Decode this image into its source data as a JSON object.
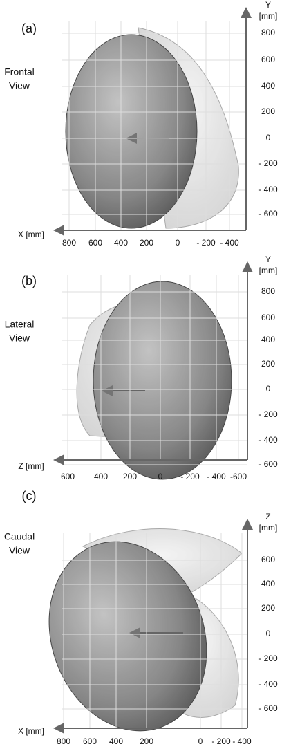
{
  "panels": [
    {
      "label": "(a)",
      "view": [
        "Frontal",
        "View"
      ],
      "x_axis": {
        "label": "X [mm]",
        "ticks": [
          "800",
          "600",
          "400",
          "200",
          "0",
          "- 200",
          "- 400"
        ]
      },
      "y_axis": {
        "label": [
          "Y",
          "[mm]"
        ],
        "ticks": [
          "800",
          "600",
          "400",
          "200",
          "0",
          "- 200",
          "- 400",
          "- 600"
        ]
      }
    },
    {
      "label": "(b)",
      "view": [
        "Lateral",
        "View"
      ],
      "x_axis": {
        "label": "Z [mm]",
        "ticks": [
          "600",
          "400",
          "200",
          "0",
          "- 200",
          "- 400",
          "-600"
        ]
      },
      "y_axis": {
        "label": [
          "Y",
          "[mm]"
        ],
        "ticks": [
          "800",
          "600",
          "400",
          "200",
          "0",
          "- 200",
          "- 400",
          "- 600"
        ]
      }
    },
    {
      "label": "(c)",
      "view": [
        "Caudal",
        "View"
      ],
      "x_axis": {
        "label": "X [mm]",
        "ticks": [
          "800",
          "600",
          "400",
          "200",
          "0",
          "- 200",
          "- 400"
        ]
      },
      "y_axis": {
        "label": [
          "Z",
          "[mm]"
        ],
        "ticks": [
          "600",
          "400",
          "200",
          "0",
          "- 200",
          "- 400",
          "- 600"
        ]
      }
    }
  ]
}
